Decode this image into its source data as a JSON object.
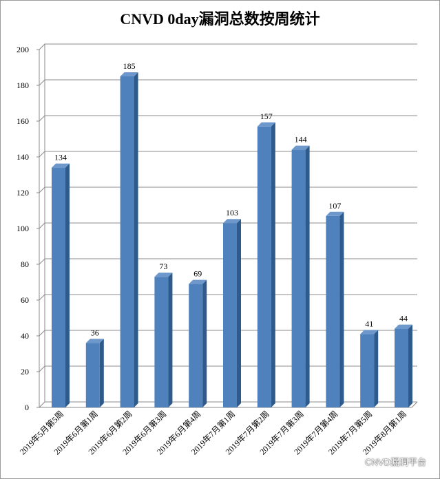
{
  "chart_data": {
    "type": "bar",
    "title": "CNVD 0day漏洞总数按周统计",
    "categories": [
      "2019年5月第5周",
      "2019年6月第1周",
      "2019年6月第2周",
      "2019年6月第3周",
      "2019年6月第4周",
      "2019年7月第1周",
      "2019年7月第2周",
      "2019年7月第3周",
      "2019年7月第4周",
      "2019年7月第5周",
      "2019年8月第1周"
    ],
    "values": [
      134,
      36,
      185,
      73,
      69,
      103,
      157,
      144,
      107,
      41,
      44
    ],
    "ylim": [
      0,
      200
    ],
    "yticks": [
      0,
      20,
      40,
      60,
      80,
      100,
      120,
      140,
      160,
      180,
      200
    ],
    "grid": true,
    "legend": "none",
    "bar_color": "#4F81BD",
    "bar_side_color": "#2E5A8C",
    "bar_top_color": "#6E98CC"
  },
  "watermark": {
    "text": "CNVD漏洞平台",
    "icon": "wechat-icon"
  }
}
